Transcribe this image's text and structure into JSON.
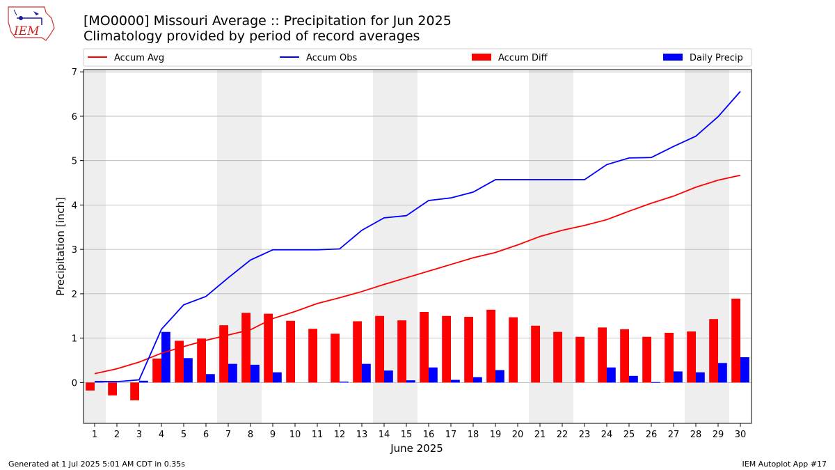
{
  "header": {
    "title": "[MO0000] Missouri Average :: Precipitation for Jun 2025",
    "subtitle": "Climatology provided by period of record averages"
  },
  "logo": {
    "text": "IEM",
    "icon": "iem-logo-icon"
  },
  "footer": {
    "left": "Generated at 1 Jul 2025 5:01 AM CDT in 0.35s",
    "right": "IEM Autoplot App #17"
  },
  "colors": {
    "avg": "#ff0000",
    "obs": "#0000ff",
    "diff": "#ff0000",
    "daily": "#0000ff",
    "weekend": "#eeeeee",
    "grid": "#b0b0b0"
  },
  "chart_data": {
    "type": "bar",
    "xlabel": "June 2025",
    "ylabel": "Precipitation [inch]",
    "ylim": [
      -0.92,
      7.05
    ],
    "xlim": [
      0.5,
      30.5
    ],
    "grid": true,
    "legend_position": "top",
    "x": [
      1,
      2,
      3,
      4,
      5,
      6,
      7,
      8,
      9,
      10,
      11,
      12,
      13,
      14,
      15,
      16,
      17,
      18,
      19,
      20,
      21,
      22,
      23,
      24,
      25,
      26,
      27,
      28,
      29,
      30
    ],
    "x_tick_labels": [
      "1",
      "2",
      "3",
      "4",
      "5",
      "6",
      "7",
      "8",
      "9",
      "10",
      "11",
      "12",
      "13",
      "14",
      "15",
      "16",
      "17",
      "18",
      "19",
      "20",
      "21",
      "22",
      "23",
      "24",
      "25",
      "26",
      "27",
      "28",
      "29",
      "30"
    ],
    "y_ticks": [
      0,
      1,
      2,
      3,
      4,
      5,
      6,
      7
    ],
    "y_tick_labels": [
      "0",
      "1",
      "2",
      "3",
      "4",
      "5",
      "6",
      "7"
    ],
    "weekend_spans": [
      [
        0.5,
        1.5
      ],
      [
        6.5,
        8.5
      ],
      [
        13.5,
        15.5
      ],
      [
        20.5,
        22.5
      ],
      [
        27.5,
        29.5
      ]
    ],
    "series": [
      {
        "name": "Accum Avg",
        "kind": "line",
        "values": [
          0.2,
          0.31,
          0.46,
          0.66,
          0.81,
          0.95,
          1.07,
          1.19,
          1.44,
          1.6,
          1.78,
          1.91,
          2.05,
          2.21,
          2.36,
          2.51,
          2.66,
          2.81,
          2.93,
          3.1,
          3.29,
          3.43,
          3.54,
          3.67,
          3.86,
          4.04,
          4.2,
          4.4,
          4.56,
          4.67
        ]
      },
      {
        "name": "Accum Obs",
        "kind": "line",
        "values": [
          0.02,
          0.02,
          0.06,
          1.2,
          1.75,
          1.94,
          2.36,
          2.76,
          2.99,
          2.99,
          2.99,
          3.01,
          3.43,
          3.71,
          3.76,
          4.1,
          4.16,
          4.29,
          4.57,
          4.57,
          4.57,
          4.57,
          4.57,
          4.91,
          5.06,
          5.07,
          5.32,
          5.55,
          5.99,
          6.56
        ]
      },
      {
        "name": "Accum Diff",
        "kind": "bar",
        "values": [
          -0.18,
          -0.29,
          -0.4,
          0.54,
          0.94,
          0.99,
          1.29,
          1.57,
          1.55,
          1.39,
          1.21,
          1.1,
          1.38,
          1.5,
          1.4,
          1.59,
          1.5,
          1.48,
          1.64,
          1.47,
          1.28,
          1.14,
          1.03,
          1.24,
          1.2,
          1.03,
          1.12,
          1.15,
          1.43,
          1.89
        ]
      },
      {
        "name": "Daily Precip",
        "kind": "bar",
        "values": [
          0.02,
          0.0,
          0.04,
          1.14,
          0.55,
          0.19,
          0.42,
          0.4,
          0.23,
          0.0,
          0.0,
          0.02,
          0.42,
          0.27,
          0.05,
          0.34,
          0.06,
          0.12,
          0.28,
          0.0,
          0.0,
          0.0,
          0.0,
          0.34,
          0.15,
          0.01,
          0.25,
          0.23,
          0.44,
          0.57
        ]
      }
    ]
  }
}
